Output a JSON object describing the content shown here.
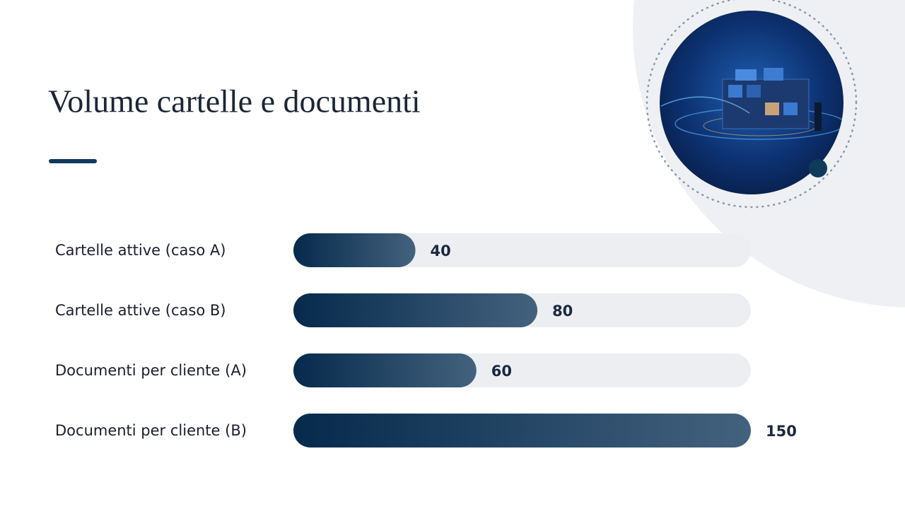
{
  "chart_data": {
    "type": "bar",
    "orientation": "horizontal",
    "title": "Volume cartelle e documenti",
    "categories": [
      "Cartelle attive (caso A)",
      "Cartelle attive (caso B)",
      "Documenti per cliente (A)",
      "Documenti per cliente (B)"
    ],
    "values": [
      40,
      80,
      60,
      150
    ],
    "color": "#0a2a4d",
    "xlim": [
      0,
      150
    ]
  }
}
